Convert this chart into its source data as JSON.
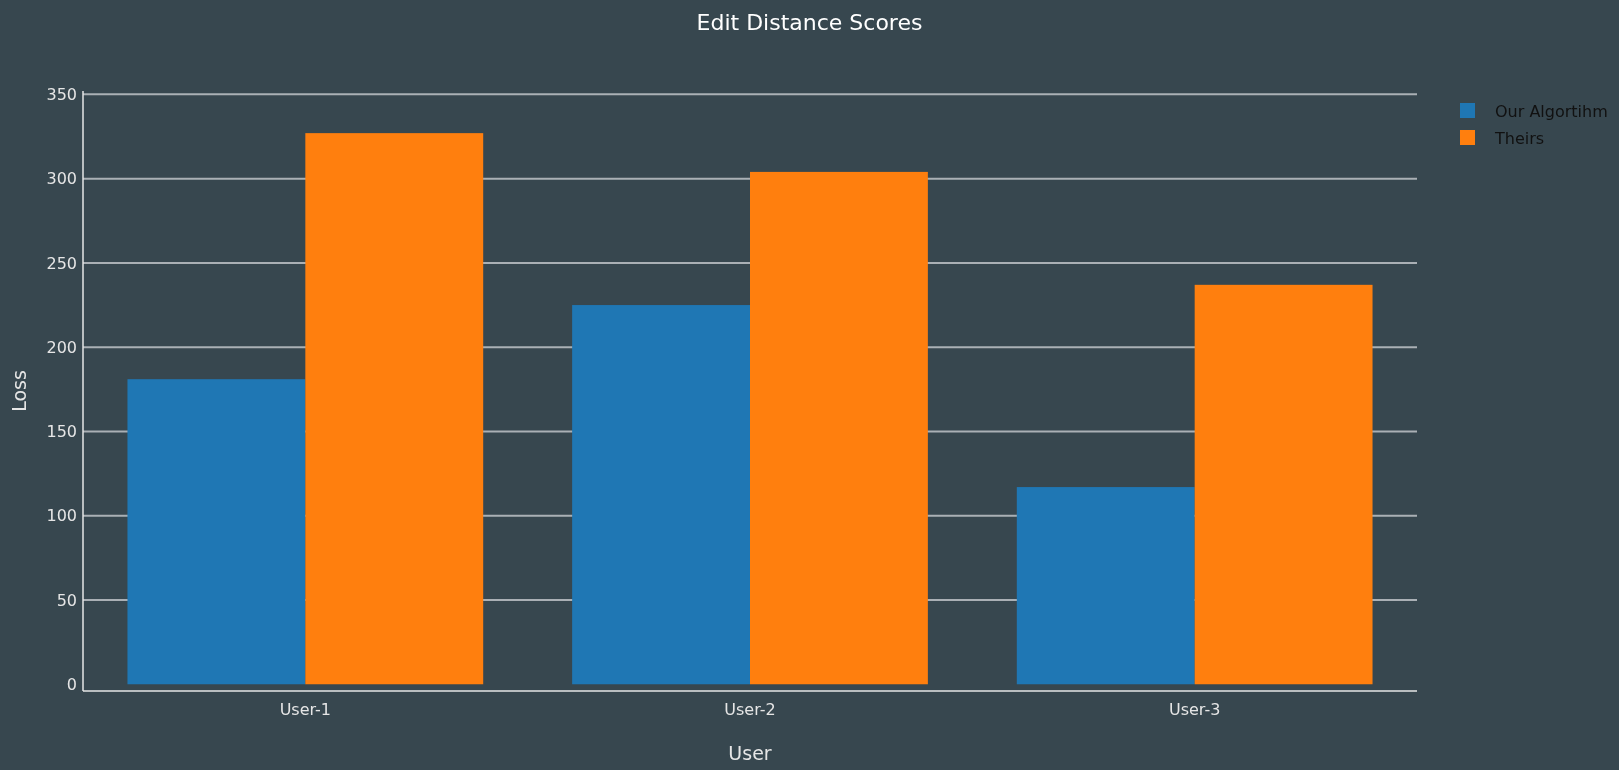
{
  "chart_data": {
    "type": "bar",
    "title": "Edit Distance Scores",
    "xlabel": "User",
    "ylabel": "Loss",
    "categories": [
      "User-1",
      "User-2",
      "User-3"
    ],
    "series": [
      {
        "name": "Our Algortihm",
        "color": "#1f77b4",
        "values": [
          181,
          225,
          117
        ]
      },
      {
        "name": "Theirs",
        "color": "#ff7f0e",
        "values": [
          327,
          304,
          237
        ]
      }
    ],
    "ylim": [
      -4,
      352
    ],
    "yticks": [
      0,
      50,
      100,
      150,
      200,
      250,
      300,
      350
    ],
    "grid": "y",
    "legend": "top right"
  }
}
